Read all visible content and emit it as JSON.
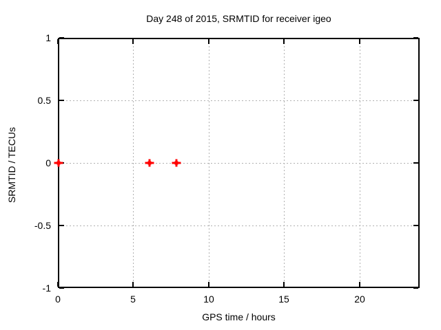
{
  "chart_data": {
    "type": "scatter",
    "title": "Day 248 of 2015, SRMTID for receiver igeo",
    "xlabel": "GPS time / hours",
    "ylabel": "SRMTID / TECUs",
    "xlim": [
      0,
      24
    ],
    "ylim": [
      -1,
      1
    ],
    "xticks": [
      0,
      5,
      10,
      15,
      20
    ],
    "yticks": [
      -1,
      -0.5,
      0,
      0.5,
      1
    ],
    "grid": true,
    "legend_position": "none",
    "background_color": "#ffffff",
    "axis_color": "#000000",
    "grid_color": "#b0b0b0",
    "series": [
      {
        "name": "SRMTID",
        "marker": "plus",
        "color": "#ff0000",
        "points": [
          {
            "x": 0.05,
            "y": 0.0
          },
          {
            "x": 6.1,
            "y": 0.0
          },
          {
            "x": 7.85,
            "y": 0.0
          }
        ]
      }
    ]
  }
}
